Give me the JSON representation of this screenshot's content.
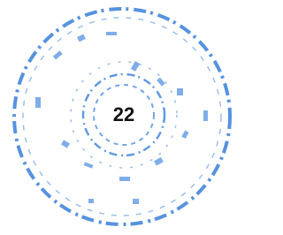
{
  "stamp": {
    "center_text": "22"
  }
}
